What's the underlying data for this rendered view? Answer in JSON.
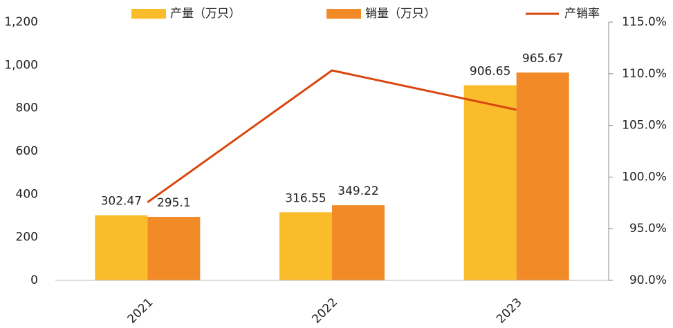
{
  "chart_data": {
    "type": "bar",
    "categories": [
      "2021",
      "2022",
      "2023"
    ],
    "series": [
      {
        "name": "产量（万只）",
        "color": "#fbbc2c",
        "values": [
          302.47,
          316.55,
          906.65
        ]
      },
      {
        "name": "销量（万只）",
        "color": "#f28a27",
        "values": [
          295.1,
          349.22,
          965.67
        ]
      },
      {
        "name": "产销率",
        "color": "#d9460f",
        "type": "line",
        "axis": "y2",
        "values": [
          97.56,
          110.32,
          106.51
        ]
      }
    ],
    "ylim": [
      0,
      1200
    ],
    "yticks": [
      0,
      200,
      400,
      600,
      800,
      {
        "value": 1000,
        "label": "1,000"
      },
      {
        "value": 1200,
        "label": "1,200"
      }
    ],
    "y2lim": [
      90,
      115
    ],
    "y2ticks": [
      {
        "value": 90,
        "label": "90.0%"
      },
      {
        "value": 95,
        "label": "95.0%"
      },
      {
        "value": 100,
        "label": "100.0%"
      },
      {
        "value": 105,
        "label": "105.0%"
      },
      {
        "value": 110,
        "label": "110.0%"
      },
      {
        "value": 115,
        "label": "115.0%"
      }
    ],
    "grid": false,
    "legend": "top",
    "data_labels": true
  }
}
